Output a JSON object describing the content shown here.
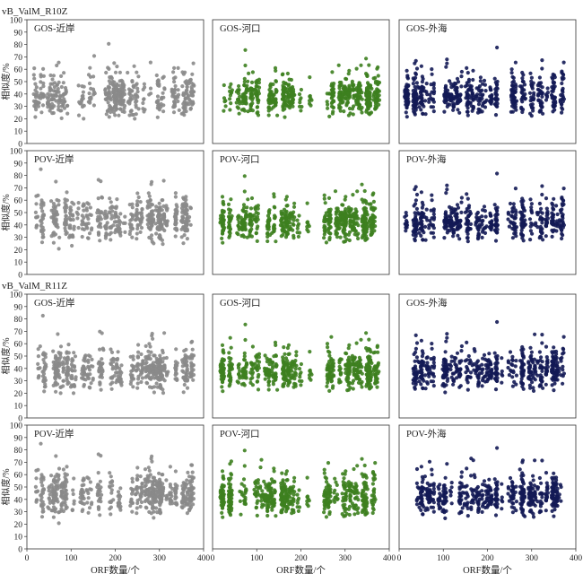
{
  "figure": {
    "sections": [
      {
        "label": "vB_ValM_R10Z"
      },
      {
        "label": "vB_ValM_R11Z"
      }
    ],
    "y_axis_label": "相似度/%",
    "x_axis_label": "ORF数量/个",
    "colors": {
      "近岸": "#8a8a8a",
      "河口": "#3d7f1f",
      "外海": "#131a55"
    }
  },
  "chart_data": [
    {
      "type": "scatter",
      "section": "vB_ValM_R10Z",
      "title": "GOS-近岸",
      "color": "#8a8a8a",
      "series": [
        {
          "name": "GOS-近岸",
          "x_range": [
            15,
            380
          ],
          "y_center": 38,
          "spread": 11
        }
      ],
      "xlim": [
        0,
        400
      ],
      "ylim": [
        0,
        100
      ],
      "xticks": [],
      "yticks": [
        0,
        10,
        20,
        30,
        40,
        50,
        60,
        70,
        80,
        90,
        100
      ],
      "ylabel": "相似度/%",
      "xlabel": ""
    },
    {
      "type": "scatter",
      "section": "vB_ValM_R10Z",
      "title": "GOS-河口",
      "color": "#3d7f1f",
      "series": [
        {
          "name": "GOS-河口",
          "x_range": [
            20,
            380
          ],
          "y_center": 38,
          "spread": 10
        }
      ],
      "xlim": [
        0,
        400
      ],
      "ylim": [
        0,
        100
      ],
      "xticks": [],
      "yticks": [],
      "ylabel": "",
      "xlabel": ""
    },
    {
      "type": "scatter",
      "section": "vB_ValM_R10Z",
      "title": "GOS-外海",
      "color": "#131a55",
      "series": [
        {
          "name": "GOS-外海",
          "x_range": [
            15,
            375
          ],
          "y_center": 38,
          "spread": 10
        }
      ],
      "xlim": [
        0,
        400
      ],
      "ylim": [
        0,
        100
      ],
      "xticks": [],
      "yticks": [],
      "ylabel": "",
      "xlabel": ""
    },
    {
      "type": "scatter",
      "section": "vB_ValM_R10Z",
      "title": "POV-近岸",
      "color": "#8a8a8a",
      "series": [
        {
          "name": "POV-近岸",
          "x_range": [
            10,
            380
          ],
          "y_center": 44,
          "spread": 12
        }
      ],
      "xlim": [
        0,
        400
      ],
      "ylim": [
        0,
        100
      ],
      "xticks": [],
      "yticks": [
        0,
        10,
        20,
        30,
        40,
        50,
        60,
        70,
        80,
        90,
        100
      ],
      "ylabel": "相似度/%",
      "xlabel": ""
    },
    {
      "type": "scatter",
      "section": "vB_ValM_R10Z",
      "title": "POV-河口",
      "color": "#3d7f1f",
      "series": [
        {
          "name": "POV-河口",
          "x_range": [
            20,
            370
          ],
          "y_center": 42,
          "spread": 10
        }
      ],
      "xlim": [
        0,
        400
      ],
      "ylim": [
        0,
        100
      ],
      "xticks": [],
      "yticks": [],
      "ylabel": "",
      "xlabel": ""
    },
    {
      "type": "scatter",
      "section": "vB_ValM_R10Z",
      "title": "POV-外海",
      "color": "#131a55",
      "series": [
        {
          "name": "POV-外海",
          "x_range": [
            15,
            375
          ],
          "y_center": 42,
          "spread": 10
        }
      ],
      "xlim": [
        0,
        400
      ],
      "ylim": [
        0,
        100
      ],
      "xticks": [],
      "yticks": [],
      "ylabel": "",
      "xlabel": ""
    },
    {
      "type": "scatter",
      "section": "vB_ValM_R11Z",
      "title": "GOS-近岸",
      "color": "#8a8a8a",
      "series": [
        {
          "name": "GOS-近岸",
          "x_range": [
            15,
            380
          ],
          "y_center": 38,
          "spread": 11
        }
      ],
      "xlim": [
        0,
        400
      ],
      "ylim": [
        0,
        100
      ],
      "xticks": [],
      "yticks": [
        0,
        10,
        20,
        30,
        40,
        50,
        60,
        70,
        80,
        90,
        100
      ],
      "ylabel": "相似度/%",
      "xlabel": ""
    },
    {
      "type": "scatter",
      "section": "vB_ValM_R11Z",
      "title": "GOS-河口",
      "color": "#3d7f1f",
      "series": [
        {
          "name": "GOS-河口",
          "x_range": [
            20,
            380
          ],
          "y_center": 38,
          "spread": 10
        }
      ],
      "xlim": [
        0,
        400
      ],
      "ylim": [
        0,
        100
      ],
      "xticks": [],
      "yticks": [],
      "ylabel": "",
      "xlabel": ""
    },
    {
      "type": "scatter",
      "section": "vB_ValM_R11Z",
      "title": "GOS-外海",
      "color": "#131a55",
      "series": [
        {
          "name": "GOS-外海",
          "x_range": [
            15,
            375
          ],
          "y_center": 38,
          "spread": 10
        }
      ],
      "xlim": [
        0,
        400
      ],
      "ylim": [
        0,
        100
      ],
      "xticks": [],
      "yticks": [],
      "ylabel": "",
      "xlabel": ""
    },
    {
      "type": "scatter",
      "section": "vB_ValM_R11Z",
      "title": "POV-近岸",
      "color": "#8a8a8a",
      "series": [
        {
          "name": "POV-近岸",
          "x_range": [
            10,
            380
          ],
          "y_center": 44,
          "spread": 12
        }
      ],
      "xlim": [
        0,
        400
      ],
      "ylim": [
        0,
        100
      ],
      "xticks": [
        0,
        100,
        200,
        300,
        400
      ],
      "yticks": [
        0,
        10,
        20,
        30,
        40,
        50,
        60,
        70,
        80,
        90,
        100
      ],
      "ylabel": "相似度/%",
      "xlabel": "ORF数量/个"
    },
    {
      "type": "scatter",
      "section": "vB_ValM_R11Z",
      "title": "POV-河口",
      "color": "#3d7f1f",
      "series": [
        {
          "name": "POV-河口",
          "x_range": [
            20,
            370
          ],
          "y_center": 42,
          "spread": 10
        }
      ],
      "xlim": [
        0,
        400
      ],
      "ylim": [
        0,
        100
      ],
      "xticks": [
        0,
        100,
        200,
        300,
        400
      ],
      "yticks": [],
      "ylabel": "",
      "xlabel": "ORF数量/个"
    },
    {
      "type": "scatter",
      "section": "vB_ValM_R11Z",
      "title": "POV-外海",
      "color": "#131a55",
      "series": [
        {
          "name": "POV-外海",
          "x_range": [
            15,
            375
          ],
          "y_center": 42,
          "spread": 10
        }
      ],
      "xlim": [
        0,
        400
      ],
      "ylim": [
        0,
        100
      ],
      "xticks": [
        0,
        100,
        200,
        300,
        400
      ],
      "yticks": [],
      "ylabel": "",
      "xlabel": "ORF数量/个"
    }
  ]
}
